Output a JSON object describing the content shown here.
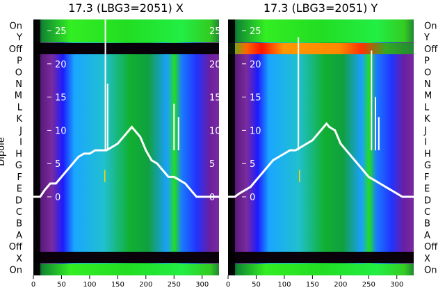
{
  "chart_data": [
    {
      "type": "heatmap",
      "title": "17.3 (LBG3=2051) X",
      "ylabel": "Dipole",
      "xlim": [
        0,
        330
      ],
      "x_ticks": [
        0,
        50,
        100,
        150,
        200,
        250,
        300
      ],
      "row_labels_left": [
        "On",
        "Y",
        "Off",
        "P",
        "O",
        "N",
        "M",
        "L",
        "K",
        "J",
        "I",
        "H",
        "G",
        "F",
        "E",
        "D",
        "C",
        "B",
        "A",
        "Off",
        "X",
        "On"
      ],
      "overlay_ticks": [
        0,
        5,
        10,
        15,
        20,
        25
      ],
      "overlay_color": "#ffffff",
      "trace": {
        "x": [
          0,
          5,
          12,
          20,
          30,
          40,
          50,
          60,
          70,
          80,
          90,
          100,
          110,
          120,
          130,
          140,
          150,
          160,
          170,
          175,
          180,
          190,
          200,
          210,
          220,
          230,
          240,
          245,
          250,
          260,
          270,
          280,
          290,
          300,
          310,
          320,
          330
        ],
        "y": [
          0,
          0,
          0,
          1,
          2,
          2,
          3,
          4,
          5,
          6,
          6.5,
          6.5,
          7,
          7,
          7,
          7.5,
          8,
          9,
          10,
          10.5,
          10,
          9,
          7,
          5.5,
          5,
          4,
          3,
          3,
          3,
          2.5,
          2,
          1,
          0,
          0,
          0,
          0,
          0
        ]
      },
      "spikes": [
        {
          "x": 128,
          "y": 27
        },
        {
          "x": 132,
          "y": 17
        },
        {
          "x": 250,
          "y": 14
        },
        {
          "x": 258,
          "y": 12
        }
      ],
      "marker": {
        "x": 127,
        "color": "#ffd400"
      }
    },
    {
      "type": "heatmap",
      "title": "17.3 (LBG3=2051) Y",
      "xlim": [
        0,
        330
      ],
      "x_ticks": [
        0,
        50,
        100,
        150,
        200,
        250,
        300
      ],
      "row_labels_right": [
        "On",
        "Y",
        "Off",
        "P",
        "O",
        "N",
        "M",
        "L",
        "K",
        "J",
        "I",
        "H",
        "G",
        "F",
        "E",
        "D",
        "C",
        "B",
        "A",
        "Off",
        "X",
        "On"
      ],
      "overlay_ticks": [
        0,
        5,
        10,
        15,
        20,
        25
      ],
      "overlay_color": "#ffffff",
      "trace": {
        "x": [
          0,
          5,
          12,
          20,
          30,
          40,
          50,
          60,
          70,
          80,
          90,
          100,
          110,
          120,
          130,
          140,
          150,
          160,
          170,
          175,
          180,
          190,
          200,
          210,
          220,
          230,
          240,
          245,
          250,
          260,
          270,
          280,
          290,
          300,
          310,
          320,
          330
        ],
        "y": [
          0,
          0,
          0,
          0.5,
          1,
          1.5,
          2.5,
          3.5,
          4.5,
          5.5,
          6,
          6.5,
          7,
          7,
          7.5,
          8,
          8.5,
          9.5,
          10.5,
          11,
          10.5,
          10,
          8,
          7,
          6,
          5,
          4,
          3.5,
          3,
          2.5,
          2,
          1.5,
          1,
          0.5,
          0,
          0,
          0
        ]
      },
      "spikes": [
        {
          "x": 125,
          "y": 24
        },
        {
          "x": 255,
          "y": 22
        },
        {
          "x": 262,
          "y": 15
        },
        {
          "x": 268,
          "y": 12
        }
      ],
      "marker": {
        "x": 127,
        "color": "#ffd400"
      }
    }
  ]
}
